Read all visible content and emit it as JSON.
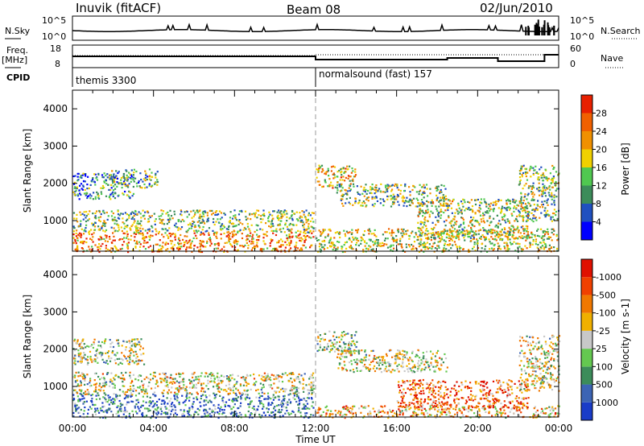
{
  "header": {
    "station": "Inuvik (fitACF)",
    "beam": "Beam 08",
    "date": "02/Jun/2010"
  },
  "summary_panels": {
    "nsky": {
      "label": "N.Sky",
      "ticks": [
        "10^5",
        "10^0"
      ]
    },
    "nsearch": {
      "label": "N.Search",
      "ticks": [
        "10^5",
        "10^0"
      ]
    },
    "freq": {
      "label_top": "Freq.",
      "label_bottom": "[MHz]",
      "ticks": [
        "18",
        "8"
      ]
    },
    "nave": {
      "label": "Nave",
      "ticks": [
        "60",
        "0"
      ]
    },
    "cpid": {
      "label": "CPID",
      "programs": [
        {
          "name": "themis 3300",
          "start_hour": 0,
          "end_hour": 12
        },
        {
          "name": "normalsound (fast) 157",
          "start_hour": 12,
          "end_hour": 24
        }
      ]
    }
  },
  "time_axis": {
    "label": "Time UT",
    "ticks": [
      "00:00",
      "04:00",
      "08:00",
      "12:00",
      "16:00",
      "20:00",
      "00:00"
    ],
    "range_hours": [
      0,
      24
    ]
  },
  "chart_data": [
    {
      "type": "heatmap",
      "quantity": "Power",
      "ylabel": "Slant Range [km]",
      "ylim": [
        180,
        4500
      ],
      "yticks": [
        1000,
        2000,
        3000,
        4000
      ],
      "colorbar": {
        "label": "Power [dB]",
        "ticks": [
          "4",
          "8",
          "12",
          "16",
          "20",
          "24",
          "28"
        ],
        "colors": [
          "#0000ff",
          "#2050c0",
          "#3c8c5a",
          "#50c850",
          "#f0d000",
          "#f09000",
          "#f06000",
          "#e82000"
        ]
      },
      "scatter_bands": [
        {
          "t0": 0.0,
          "t1": 11.9,
          "r0": 180,
          "r1": 700,
          "level": 0.75
        },
        {
          "t0": 0.0,
          "t1": 11.9,
          "r0": 700,
          "r1": 1300,
          "level": 0.45
        },
        {
          "t0": 0.0,
          "t1": 3.0,
          "r0": 1600,
          "r1": 2300,
          "level": 0.3
        },
        {
          "t0": 1.8,
          "t1": 4.2,
          "r0": 1900,
          "r1": 2400,
          "level": 0.4
        },
        {
          "t0": 12.0,
          "t1": 14.0,
          "r0": 1900,
          "r1": 2500,
          "level": 0.6
        },
        {
          "t0": 13.0,
          "t1": 18.5,
          "r0": 1400,
          "r1": 2000,
          "level": 0.45
        },
        {
          "t0": 12.0,
          "t1": 24.0,
          "r0": 180,
          "r1": 800,
          "level": 0.55
        },
        {
          "t0": 17.0,
          "t1": 22.5,
          "r0": 500,
          "r1": 1600,
          "level": 0.5
        },
        {
          "t0": 22.0,
          "t1": 24.0,
          "r0": 1000,
          "r1": 2500,
          "level": 0.45
        }
      ]
    },
    {
      "type": "heatmap",
      "quantity": "Velocity",
      "ylabel": "Slant Range [km]",
      "ylim": [
        180,
        4500
      ],
      "yticks": [
        1000,
        2000,
        3000,
        4000
      ],
      "colorbar": {
        "label": "Velocity [m s-1]",
        "ticks": [
          "1000",
          "500",
          "100",
          "25",
          "-25",
          "-100",
          "-500",
          "-1000"
        ],
        "colors": [
          "#1a3cc8",
          "#3c64b4",
          "#3c8c5a",
          "#64c850",
          "#c8c8c8",
          "#f0b000",
          "#f07800",
          "#f04000",
          "#e01000"
        ]
      },
      "scatter_bands": [
        {
          "t0": 0.0,
          "t1": 11.9,
          "r0": 180,
          "r1": 800,
          "level": 0.2
        },
        {
          "t0": 0.0,
          "t1": 11.9,
          "r0": 800,
          "r1": 1400,
          "level": 0.5
        },
        {
          "t0": 0.0,
          "t1": 3.5,
          "r0": 1600,
          "r1": 2300,
          "level": 0.45
        },
        {
          "t0": 12.0,
          "t1": 14.0,
          "r0": 1900,
          "r1": 2500,
          "level": 0.45
        },
        {
          "t0": 13.0,
          "t1": 18.5,
          "r0": 1400,
          "r1": 2000,
          "level": 0.5
        },
        {
          "t0": 12.0,
          "t1": 24.0,
          "r0": 180,
          "r1": 500,
          "level": 0.62
        },
        {
          "t0": 16.0,
          "t1": 22.5,
          "r0": 400,
          "r1": 1200,
          "level": 0.8
        },
        {
          "t0": 22.0,
          "t1": 24.0,
          "r0": 900,
          "r1": 2400,
          "level": 0.5
        }
      ]
    }
  ]
}
